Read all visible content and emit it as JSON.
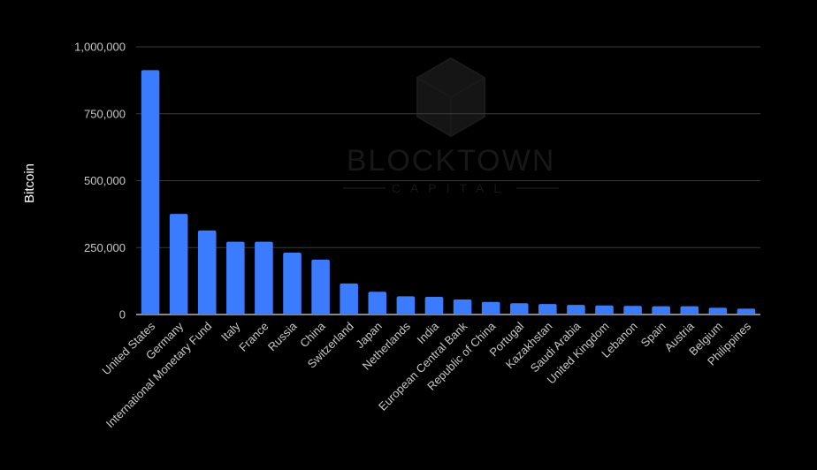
{
  "watermark": {
    "name": "BLOCKTOWN",
    "sub": "CAPITAL"
  },
  "chart_data": {
    "type": "bar",
    "ylabel": "Bitcoin",
    "ylim": [
      0,
      1000000
    ],
    "yticks": [
      0,
      250000,
      500000,
      750000,
      1000000
    ],
    "ytick_labels": [
      "0",
      "250,000",
      "500,000",
      "750,000",
      "1,000,000"
    ],
    "grid": true,
    "bar_color": "#3b7cff",
    "background": "#000000",
    "categories": [
      "United States",
      "Germany",
      "International Monetary Fund",
      "Italy",
      "France",
      "Russia",
      "China",
      "Switzerland",
      "Japan",
      "Netherlands",
      "India",
      "European Central Bank",
      "Republic of China",
      "Portugal",
      "Kazakhstan",
      "Saudi Arabia",
      "United Kingdom",
      "Lebanon",
      "Spain",
      "Austria",
      "Belgium",
      "Philippines"
    ],
    "values": [
      913000,
      376000,
      314000,
      272000,
      272000,
      231000,
      205000,
      116000,
      85000,
      68000,
      66000,
      56000,
      47000,
      42000,
      39000,
      36000,
      34000,
      32000,
      31000,
      31000,
      25000,
      22000
    ]
  }
}
